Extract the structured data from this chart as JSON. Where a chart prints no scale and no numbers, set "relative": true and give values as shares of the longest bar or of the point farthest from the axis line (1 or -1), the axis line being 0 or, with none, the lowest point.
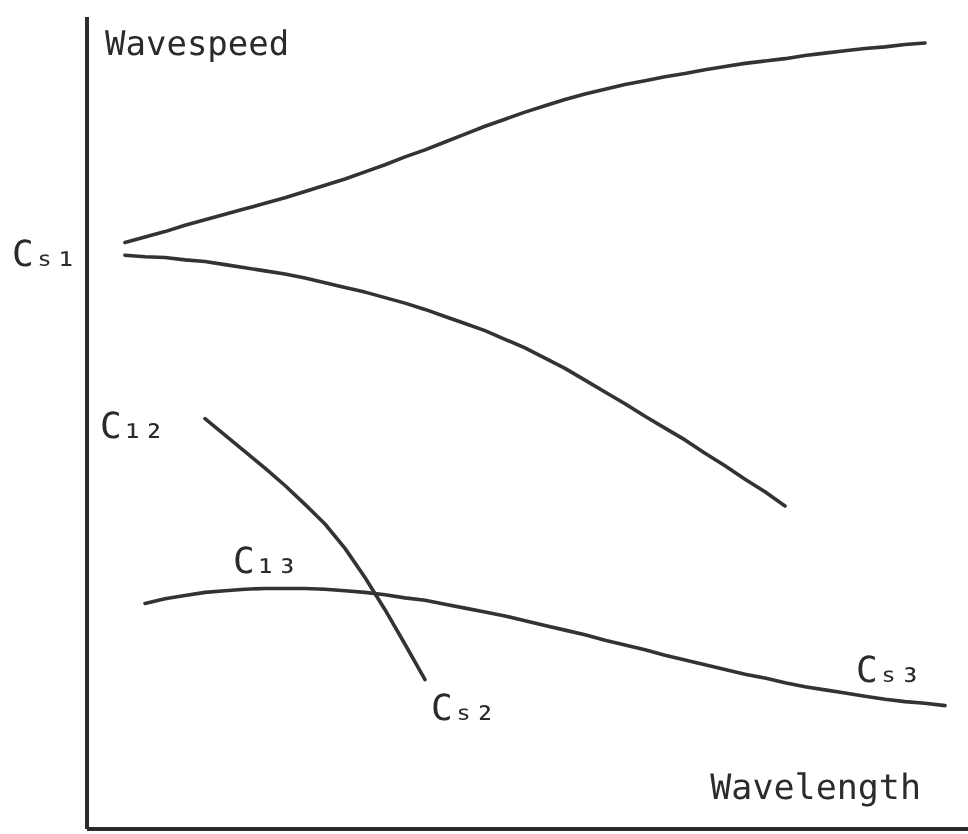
{
  "chart_data": {
    "type": "line",
    "relative": true,
    "xlabel": "Wavelength",
    "ylabel": "Wavespeed",
    "annotations": [
      "Cₛ₁",
      "C₁₂",
      "C₁₃",
      "Cₛ₂",
      "Cₛ₃"
    ],
    "categories": [
      null,
      null,
      null,
      null,
      null,
      null,
      null,
      null,
      null,
      null,
      null,
      null,
      null,
      null,
      null,
      null,
      null,
      null,
      null,
      null,
      null,
      null,
      null,
      null,
      null,
      null,
      null,
      null,
      null,
      null,
      null,
      null,
      null,
      null,
      null,
      null,
      null,
      null,
      null,
      null,
      null,
      null
    ],
    "series": [
      {
        "color": "#333333",
        "values": [
          0.746,
          0.753,
          0.76,
          0.768,
          0.775,
          0.782,
          0.789,
          0.796,
          0.803,
          0.811,
          0.819,
          0.827,
          0.836,
          0.845,
          0.855,
          0.864,
          0.874,
          0.884,
          0.894,
          0.903,
          0.912,
          0.92,
          0.928,
          0.935,
          0.941,
          0.947,
          0.952,
          0.957,
          0.961,
          0.966,
          0.97,
          0.974,
          0.977,
          0.98,
          0.984,
          0.987,
          0.99,
          0.993,
          0.995,
          0.998,
          1.0,
          null
        ]
      },
      {
        "color": "#333333",
        "values": [
          0.73,
          0.728,
          0.727,
          0.724,
          0.722,
          0.718,
          0.714,
          0.71,
          0.706,
          0.701,
          0.695,
          0.689,
          0.683,
          0.676,
          0.669,
          0.661,
          0.652,
          0.643,
          0.634,
          0.623,
          0.612,
          0.599,
          0.586,
          0.571,
          0.556,
          0.541,
          0.525,
          0.51,
          0.495,
          0.478,
          0.462,
          0.445,
          0.429,
          0.411,
          null,
          null,
          null,
          null,
          null,
          null,
          null,
          null
        ]
      },
      {
        "color": "#333333",
        "values": [
          null,
          null,
          null,
          null,
          0.522,
          0.501,
          0.48,
          0.459,
          0.437,
          0.413,
          0.388,
          0.357,
          0.32,
          0.279,
          0.235,
          0.19,
          null,
          null,
          null,
          null,
          null,
          null,
          null,
          null,
          null,
          null,
          null,
          null,
          null,
          null,
          null,
          null,
          null,
          null,
          null,
          null,
          null,
          null,
          null,
          null,
          null,
          null
        ]
      },
      {
        "color": "#333333",
        "values": [
          null,
          0.287,
          0.293,
          0.297,
          0.301,
          0.303,
          0.305,
          0.306,
          0.306,
          0.306,
          0.305,
          0.303,
          0.301,
          0.298,
          0.294,
          0.291,
          0.286,
          0.281,
          0.276,
          0.271,
          0.265,
          0.259,
          0.253,
          0.247,
          0.24,
          0.234,
          0.228,
          0.221,
          0.215,
          0.209,
          0.203,
          0.197,
          0.192,
          0.186,
          0.181,
          0.177,
          0.173,
          0.169,
          0.165,
          0.162,
          0.16,
          0.157
        ]
      }
    ]
  }
}
